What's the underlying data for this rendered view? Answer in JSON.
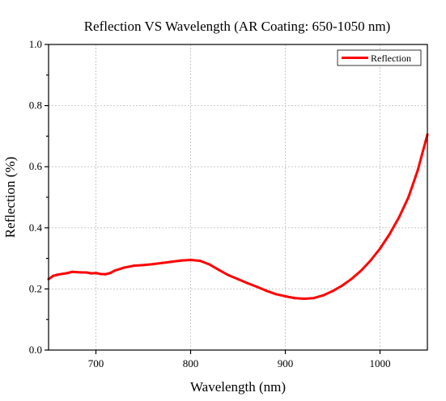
{
  "chart_data": {
    "type": "line",
    "title": "Reflection VS Wavelength  (AR Coating: 650-1050 nm)",
    "xlabel": "Wavelength (nm)",
    "ylabel": "Reflection (%)",
    "xlim": [
      650,
      1050
    ],
    "ylim": [
      0,
      1.0
    ],
    "x_ticks": [
      700,
      800,
      900,
      1000
    ],
    "x_tick_labels": [
      "700",
      "800",
      "900",
      "1000"
    ],
    "y_ticks": [
      0,
      0.2,
      0.4,
      0.6,
      0.8,
      1.0
    ],
    "y_tick_labels": [
      "0.0",
      "0.2",
      "0.4",
      "0.6",
      "0.8",
      "1.0"
    ],
    "grid": true,
    "legend_position": "top-right",
    "series": [
      {
        "name": "Reflection",
        "color": "#ff0000",
        "x": [
          650,
          655,
          660,
          670,
          675,
          685,
          690,
          695,
          700,
          705,
          710,
          715,
          720,
          730,
          740,
          750,
          760,
          770,
          780,
          790,
          800,
          810,
          820,
          830,
          840,
          850,
          860,
          870,
          880,
          890,
          900,
          910,
          920,
          930,
          940,
          950,
          960,
          970,
          980,
          990,
          1000,
          1010,
          1020,
          1030,
          1040,
          1050
        ],
        "values": [
          0.232,
          0.243,
          0.247,
          0.252,
          0.256,
          0.254,
          0.254,
          0.251,
          0.252,
          0.249,
          0.248,
          0.252,
          0.26,
          0.27,
          0.276,
          0.278,
          0.281,
          0.285,
          0.289,
          0.293,
          0.295,
          0.292,
          0.28,
          0.262,
          0.245,
          0.232,
          0.219,
          0.207,
          0.194,
          0.183,
          0.176,
          0.17,
          0.168,
          0.17,
          0.179,
          0.193,
          0.211,
          0.233,
          0.26,
          0.293,
          0.332,
          0.379,
          0.434,
          0.5,
          0.59,
          0.705
        ]
      }
    ]
  }
}
